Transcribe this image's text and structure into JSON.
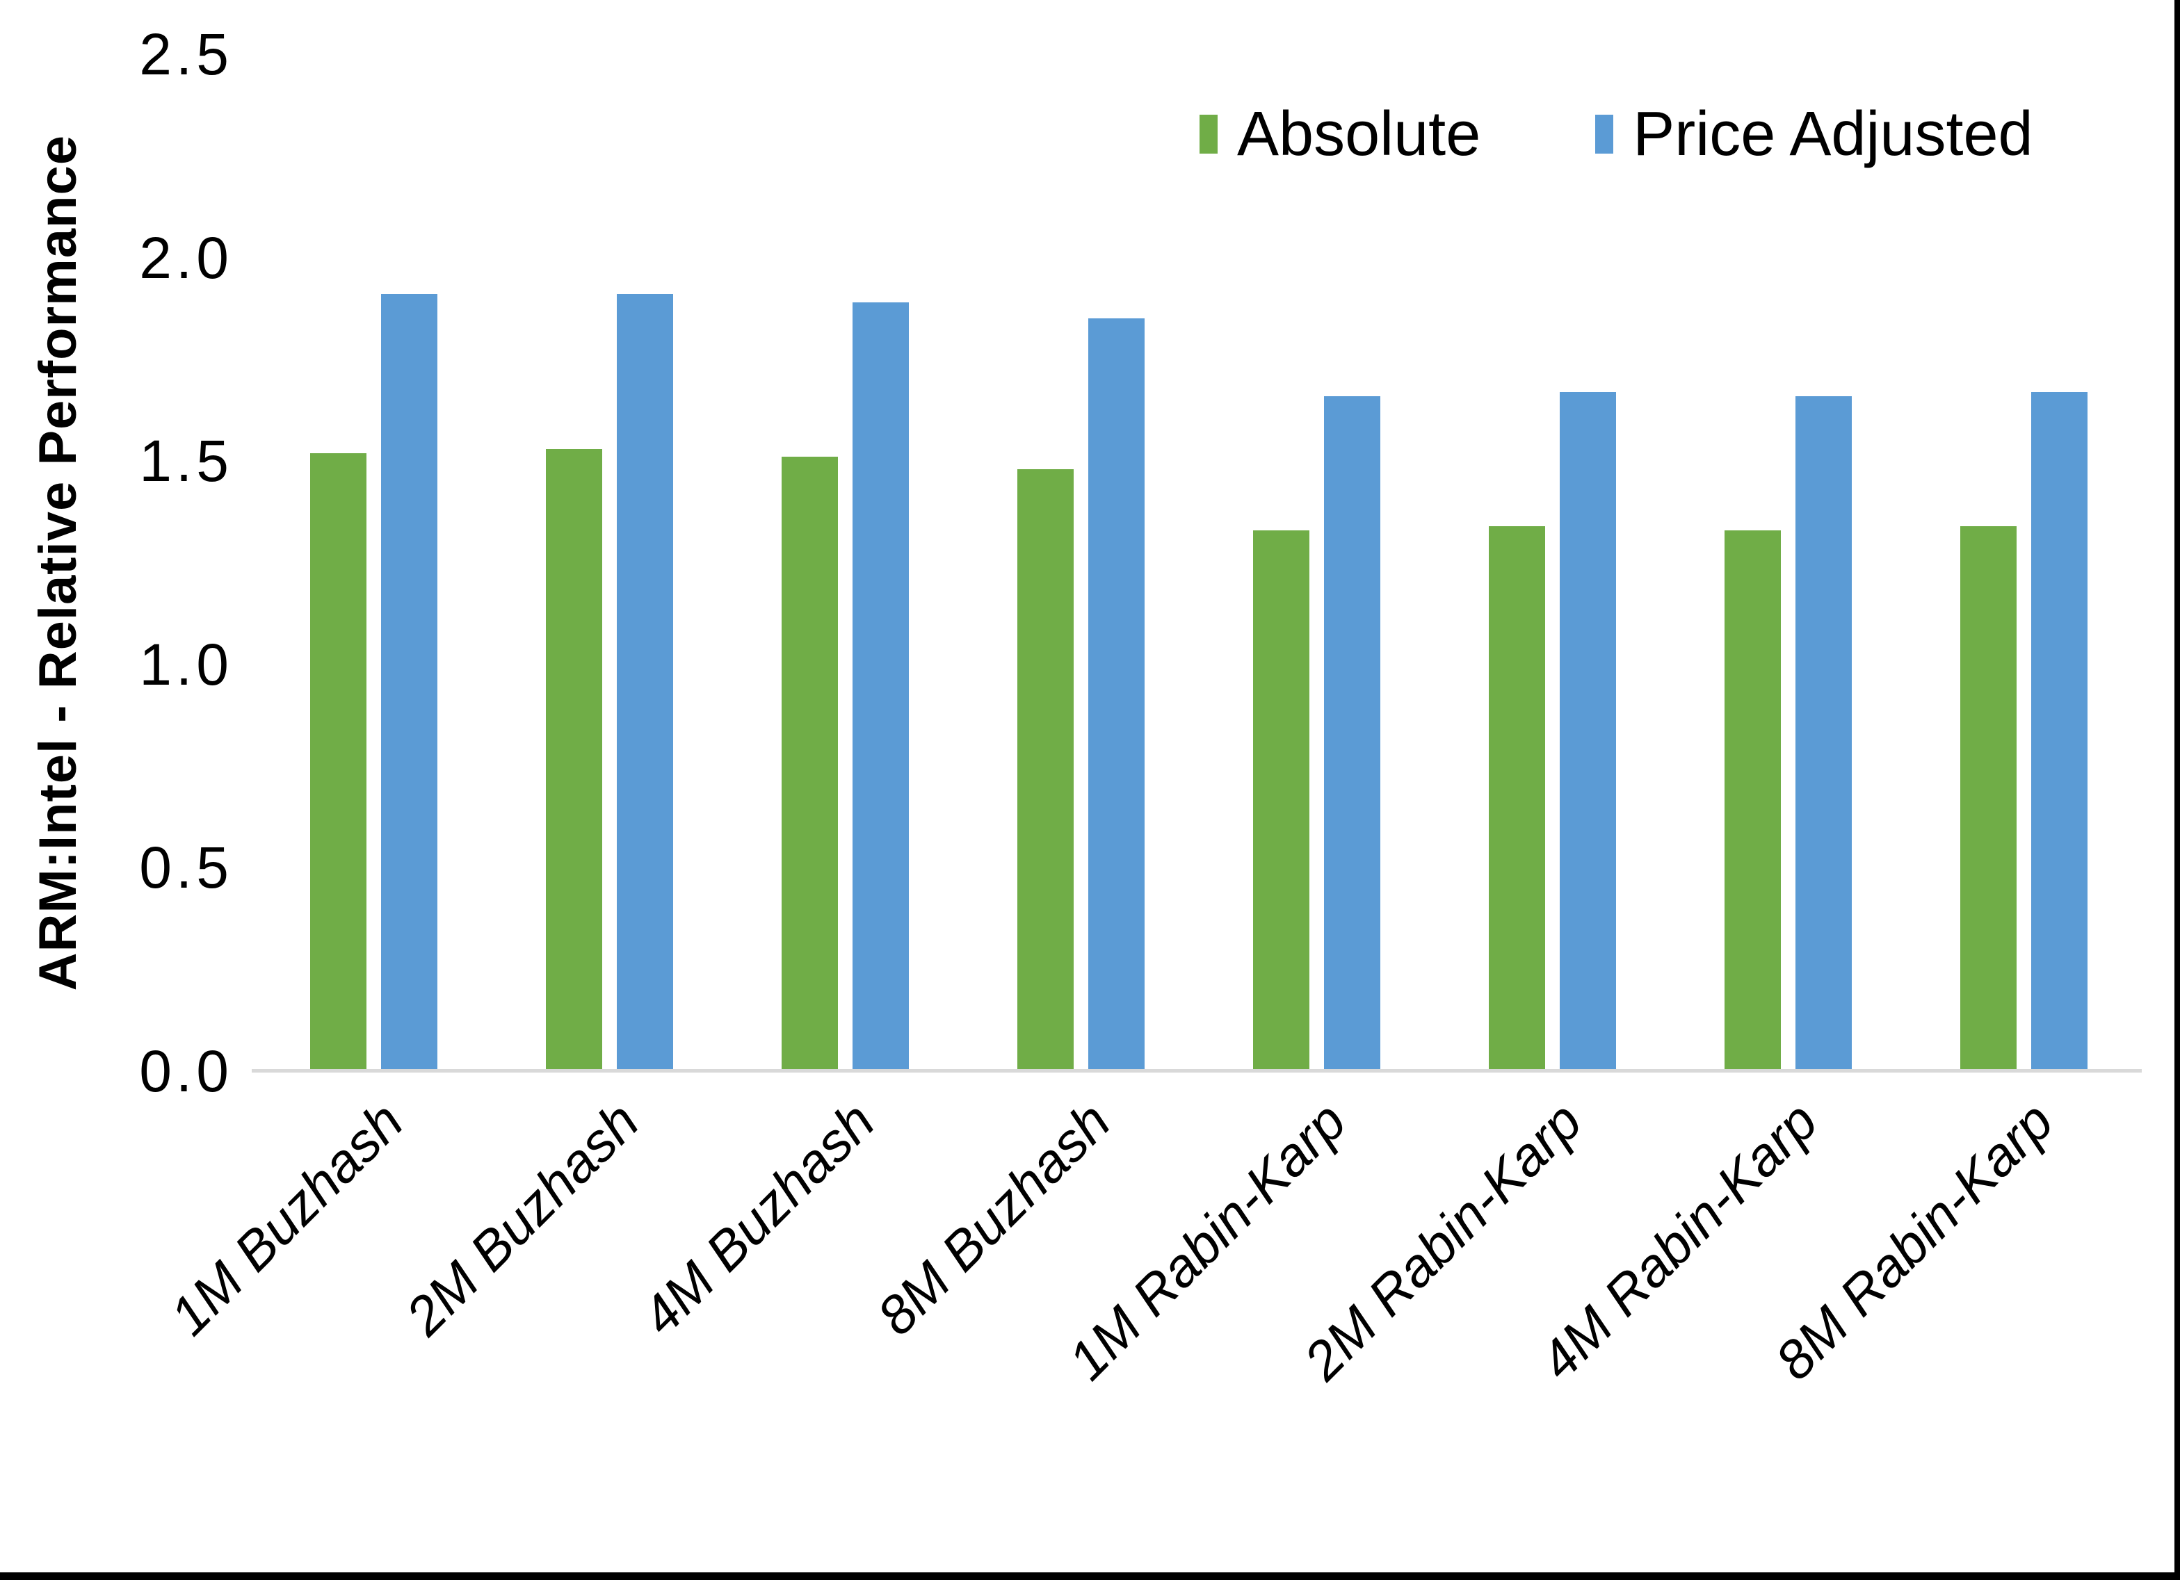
{
  "chart_data": {
    "type": "bar",
    "title": "",
    "ylabel": "ARM:Intel - Relative Performance",
    "xlabel": "",
    "ylim": [
      0,
      2.5
    ],
    "yticks": [
      "0.0",
      "0.5",
      "1.0",
      "1.5",
      "2.0",
      "2.5"
    ],
    "grid": false,
    "legend_position": "top-right",
    "axis_line_color": "#d9d9d9",
    "categories": [
      "1M Buzhash",
      "2M Buzhash",
      "4M Buzhash",
      "8M Buzhash",
      "1M Rabin-Karp",
      "2M Rabin-Karp",
      "4M Rabin-Karp",
      "8M Rabin-Karp"
    ],
    "series": [
      {
        "name": "Absolute",
        "color": "#70AD47",
        "values": [
          1.52,
          1.53,
          1.51,
          1.48,
          1.33,
          1.34,
          1.33,
          1.34
        ]
      },
      {
        "name": "Price Adjusted",
        "color": "#5B9BD5",
        "values": [
          1.91,
          1.91,
          1.89,
          1.85,
          1.66,
          1.67,
          1.66,
          1.67
        ]
      }
    ]
  }
}
